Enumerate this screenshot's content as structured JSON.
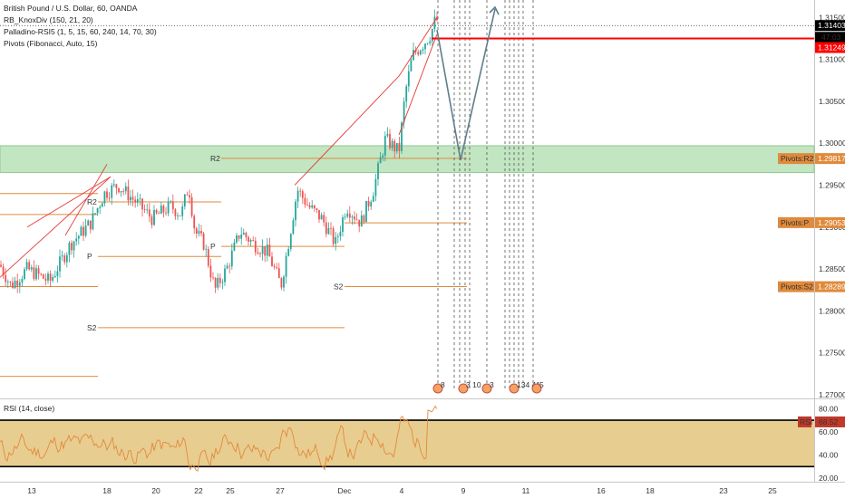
{
  "legend": {
    "symbol": "British Pound / U.S. Dollar, 60, OANDA",
    "ind1": "RB_KnoxDiv (150, 21, 20)",
    "ind2": "Palladino-RSI5 (1, 5, 15, 60, 240, 14, 70, 30)",
    "ind3": "Pivots (Fibonacci, Auto, 15)",
    "rsi": "RSI (14, close)"
  },
  "colors": {
    "up": "#26a69a",
    "down": "#ef5350",
    "pivot": "#e08a3c",
    "zone": "#b7e0b7",
    "rsi_zone": "#e8cd90",
    "rsi_line": "#e08a3c",
    "projection": "#607d8b",
    "red_level": "#ff0000"
  },
  "chart_data": {
    "type": "candlestick",
    "ylim": [
      1.27,
      1.316
    ],
    "y_ticks": [
      "1.31500",
      "1.31000",
      "1.30500",
      "1.30000",
      "1.29500",
      "1.29000",
      "1.28500",
      "1.28000",
      "1.27500",
      "1.27000"
    ],
    "y_tick_values": [
      1.315,
      1.31,
      1.305,
      1.3,
      1.295,
      1.29,
      1.285,
      1.28,
      1.275,
      1.27
    ],
    "x_ticks": [
      "13",
      "18",
      "20",
      "22",
      "25",
      "27",
      "Dec",
      "4",
      "9",
      "11",
      "16",
      "18",
      "23",
      "25"
    ],
    "price_path": [
      [
        0,
        1.2855
      ],
      [
        12,
        1.283
      ],
      [
        30,
        1.285
      ],
      [
        55,
        1.2835
      ],
      [
        78,
        1.288
      ],
      [
        100,
        1.2905
      ],
      [
        115,
        1.294
      ],
      [
        130,
        1.295
      ],
      [
        150,
        1.293
      ],
      [
        168,
        1.291
      ],
      [
        188,
        1.2925
      ],
      [
        200,
        1.2915
      ],
      [
        208,
        1.295
      ],
      [
        215,
        1.2895
      ],
      [
        225,
        1.288
      ],
      [
        237,
        1.2825
      ],
      [
        250,
        1.285
      ],
      [
        265,
        1.2895
      ],
      [
        280,
        1.288
      ],
      [
        295,
        1.287
      ],
      [
        310,
        1.283
      ],
      [
        318,
        1.288
      ],
      [
        328,
        1.2945
      ],
      [
        340,
        1.2925
      ],
      [
        355,
        1.291
      ],
      [
        370,
        1.288
      ],
      [
        382,
        1.2925
      ],
      [
        398,
        1.2905
      ],
      [
        412,
        1.2945
      ],
      [
        425,
        1.3005
      ],
      [
        440,
        1.299
      ],
      [
        447,
        1.306
      ],
      [
        455,
        1.3105
      ],
      [
        468,
        1.312
      ],
      [
        475,
        1.313
      ],
      [
        481,
        1.315
      ],
      [
        484,
        1.314
      ]
    ],
    "levels": [
      {
        "label": "R2",
        "value": 1.293,
        "x_from": 108,
        "x_to": 244
      },
      {
        "label": "P",
        "value": 1.2865,
        "x_from": 108,
        "x_to": 244
      },
      {
        "label": "S2",
        "value": 1.278,
        "x_from": 108,
        "x_to": 380
      },
      {
        "label": "R2",
        "value": 1.2982,
        "x_from": 244,
        "x_to": 515
      },
      {
        "label": "P",
        "value": 1.2877,
        "x_from": 244,
        "x_to": 380
      },
      {
        "label": "S2",
        "value": 1.2829,
        "x_from": 380,
        "x_to": 515
      },
      {
        "label": "",
        "value": 1.2905,
        "x_from": 380,
        "x_to": 515
      },
      {
        "label": "",
        "value": 1.2915,
        "x_from": 0,
        "x_to": 108
      },
      {
        "label": "",
        "value": 1.2829,
        "x_from": 0,
        "x_to": 108
      },
      {
        "label": "",
        "value": 1.294,
        "x_from": 0,
        "x_to": 108
      },
      {
        "label": "",
        "value": 1.2722,
        "x_from": 0,
        "x_to": 108
      }
    ],
    "current_price": 1.31403,
    "current_label": "1.31403",
    "countdown": "47:03",
    "red_level": 1.31249,
    "red_label": "1.31249",
    "pivot_tags": [
      {
        "label": "Pivots:R2",
        "value": 1.29817,
        "text": "1.29817"
      },
      {
        "label": "Pivots:P",
        "value": 1.29053,
        "text": "1.29053"
      },
      {
        "label": "Pivots:S2",
        "value": 1.28289,
        "text": "1.28289"
      }
    ],
    "zone": [
      1.2965,
      1.2997
    ],
    "projection": [
      [
        482,
        1.3135
      ],
      [
        508,
        1.298
      ],
      [
        546,
        1.316
      ]
    ],
    "event_markers": [
      {
        "x": 483,
        "text": "8"
      },
      {
        "x": 511,
        "text": "3 10"
      },
      {
        "x": 537,
        "text": "3"
      },
      {
        "x": 567,
        "text": "134 41"
      },
      {
        "x": 592,
        "text": "5"
      }
    ],
    "rsi": {
      "ylim": [
        17,
        88
      ],
      "ticks": [
        "80.00",
        "60.00",
        "40.00",
        "20.00"
      ],
      "tick_values": [
        80,
        60,
        40,
        20
      ],
      "upper": 70,
      "lower": 30,
      "last": 68.52,
      "last_label": "68.52",
      "badge": "RSI"
    }
  }
}
